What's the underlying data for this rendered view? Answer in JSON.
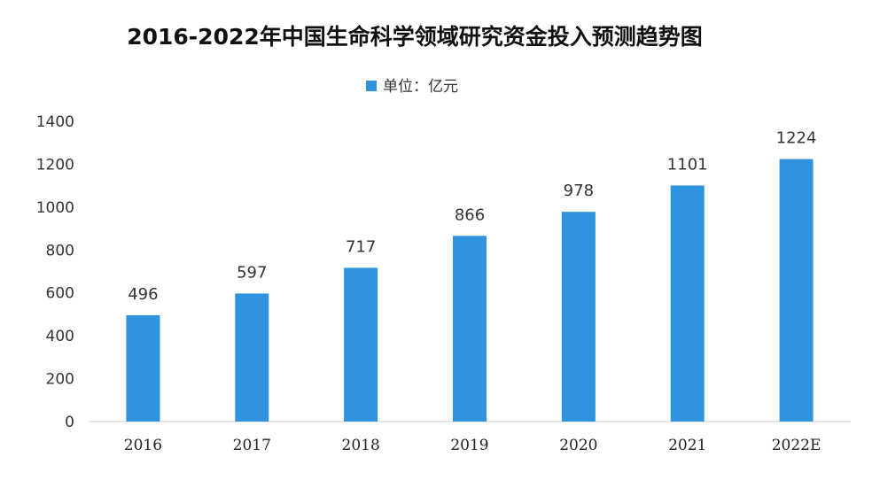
{
  "chart_data": {
    "type": "bar",
    "title": "2016-2022年中国生命科学领域研究资金投入预测趋势图",
    "xlabel": "",
    "ylabel": "",
    "categories": [
      "2016",
      "2017",
      "2018",
      "2019",
      "2020",
      "2021",
      "2022E"
    ],
    "series": [
      {
        "name": "单位：亿元",
        "values": [
          496,
          597,
          717,
          866,
          978,
          1101,
          1224
        ]
      }
    ],
    "ylim": [
      0,
      1400
    ],
    "yticks": [
      0,
      200,
      400,
      600,
      800,
      1000,
      1200,
      1400
    ],
    "grid": false,
    "legend": "top-center",
    "data_labels": true,
    "colors": {
      "bar": "#2f93df",
      "axis": "#cccccc",
      "text": "#333333"
    }
  }
}
